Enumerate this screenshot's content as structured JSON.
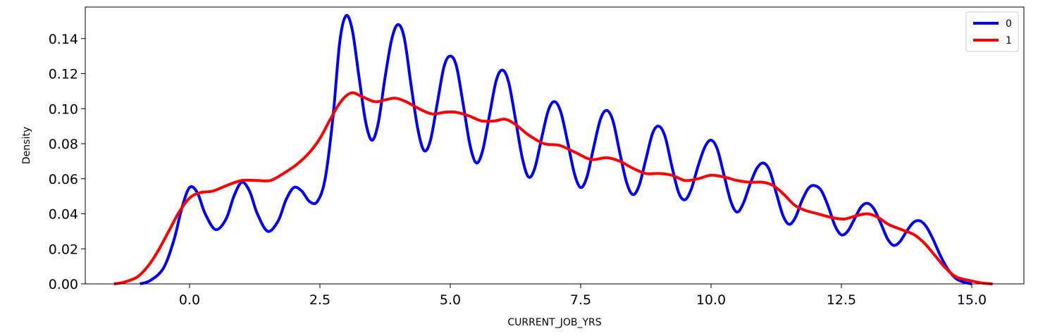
{
  "chart_data": {
    "type": "line",
    "xlabel": "CURRENT_JOB_YRS",
    "ylabel": "Density",
    "xlim": [
      -2.0,
      16.0
    ],
    "ylim": [
      0.0,
      0.158
    ],
    "xticks": [
      0.0,
      2.5,
      5.0,
      7.5,
      10.0,
      12.5,
      15.0
    ],
    "xtick_labels": [
      "0.0",
      "2.5",
      "5.0",
      "7.5",
      "10.0",
      "12.5",
      "15.0"
    ],
    "yticks": [
      0.0,
      0.02,
      0.04,
      0.06,
      0.08,
      0.1,
      0.12,
      0.14
    ],
    "ytick_labels": [
      "0.00",
      "0.02",
      "0.04",
      "0.06",
      "0.08",
      "0.10",
      "0.12",
      "0.14"
    ],
    "grid": false,
    "legend_position": "top-right",
    "series": [
      {
        "name": "0",
        "color": "#0000ff",
        "points": [
          [
            -0.95,
            0.0
          ],
          [
            -0.75,
            0.002
          ],
          [
            -0.5,
            0.009
          ],
          [
            -0.3,
            0.025
          ],
          [
            -0.15,
            0.043
          ],
          [
            0.0,
            0.055
          ],
          [
            0.15,
            0.052
          ],
          [
            0.3,
            0.04
          ],
          [
            0.5,
            0.031
          ],
          [
            0.7,
            0.037
          ],
          [
            0.85,
            0.05
          ],
          [
            1.0,
            0.058
          ],
          [
            1.15,
            0.053
          ],
          [
            1.3,
            0.04
          ],
          [
            1.5,
            0.03
          ],
          [
            1.7,
            0.036
          ],
          [
            1.85,
            0.048
          ],
          [
            2.0,
            0.055
          ],
          [
            2.15,
            0.053
          ],
          [
            2.3,
            0.047
          ],
          [
            2.45,
            0.047
          ],
          [
            2.6,
            0.06
          ],
          [
            2.75,
            0.095
          ],
          [
            2.88,
            0.138
          ],
          [
            3.0,
            0.153
          ],
          [
            3.12,
            0.145
          ],
          [
            3.25,
            0.118
          ],
          [
            3.38,
            0.092
          ],
          [
            3.5,
            0.082
          ],
          [
            3.62,
            0.092
          ],
          [
            3.75,
            0.118
          ],
          [
            3.88,
            0.14
          ],
          [
            4.0,
            0.148
          ],
          [
            4.12,
            0.14
          ],
          [
            4.25,
            0.113
          ],
          [
            4.38,
            0.088
          ],
          [
            4.5,
            0.076
          ],
          [
            4.62,
            0.082
          ],
          [
            4.75,
            0.103
          ],
          [
            4.88,
            0.124
          ],
          [
            5.0,
            0.13
          ],
          [
            5.12,
            0.124
          ],
          [
            5.25,
            0.102
          ],
          [
            5.38,
            0.079
          ],
          [
            5.5,
            0.069
          ],
          [
            5.62,
            0.076
          ],
          [
            5.75,
            0.096
          ],
          [
            5.88,
            0.116
          ],
          [
            6.0,
            0.122
          ],
          [
            6.12,
            0.115
          ],
          [
            6.25,
            0.094
          ],
          [
            6.38,
            0.072
          ],
          [
            6.5,
            0.061
          ],
          [
            6.62,
            0.066
          ],
          [
            6.75,
            0.083
          ],
          [
            6.88,
            0.099
          ],
          [
            7.0,
            0.104
          ],
          [
            7.12,
            0.098
          ],
          [
            7.25,
            0.081
          ],
          [
            7.38,
            0.063
          ],
          [
            7.5,
            0.055
          ],
          [
            7.62,
            0.061
          ],
          [
            7.75,
            0.078
          ],
          [
            7.88,
            0.094
          ],
          [
            8.0,
            0.099
          ],
          [
            8.12,
            0.093
          ],
          [
            8.25,
            0.075
          ],
          [
            8.38,
            0.058
          ],
          [
            8.5,
            0.051
          ],
          [
            8.62,
            0.056
          ],
          [
            8.75,
            0.071
          ],
          [
            8.88,
            0.086
          ],
          [
            9.0,
            0.09
          ],
          [
            9.12,
            0.084
          ],
          [
            9.25,
            0.067
          ],
          [
            9.38,
            0.052
          ],
          [
            9.5,
            0.048
          ],
          [
            9.62,
            0.054
          ],
          [
            9.75,
            0.067
          ],
          [
            9.88,
            0.078
          ],
          [
            10.0,
            0.082
          ],
          [
            10.12,
            0.077
          ],
          [
            10.25,
            0.062
          ],
          [
            10.38,
            0.047
          ],
          [
            10.5,
            0.041
          ],
          [
            10.62,
            0.046
          ],
          [
            10.75,
            0.057
          ],
          [
            10.88,
            0.066
          ],
          [
            11.0,
            0.069
          ],
          [
            11.12,
            0.065
          ],
          [
            11.25,
            0.052
          ],
          [
            11.38,
            0.039
          ],
          [
            11.5,
            0.034
          ],
          [
            11.62,
            0.038
          ],
          [
            11.75,
            0.048
          ],
          [
            11.88,
            0.055
          ],
          [
            12.0,
            0.056
          ],
          [
            12.12,
            0.053
          ],
          [
            12.25,
            0.044
          ],
          [
            12.38,
            0.033
          ],
          [
            12.5,
            0.028
          ],
          [
            12.62,
            0.03
          ],
          [
            12.75,
            0.037
          ],
          [
            12.88,
            0.044
          ],
          [
            13.0,
            0.046
          ],
          [
            13.12,
            0.043
          ],
          [
            13.25,
            0.035
          ],
          [
            13.38,
            0.026
          ],
          [
            13.5,
            0.022
          ],
          [
            13.62,
            0.024
          ],
          [
            13.75,
            0.03
          ],
          [
            13.88,
            0.035
          ],
          [
            14.0,
            0.036
          ],
          [
            14.12,
            0.033
          ],
          [
            14.25,
            0.026
          ],
          [
            14.4,
            0.016
          ],
          [
            14.55,
            0.008
          ],
          [
            14.7,
            0.003
          ],
          [
            14.85,
            0.001
          ],
          [
            15.0,
            0.0
          ]
        ]
      },
      {
        "name": "1",
        "color": "#ff0000",
        "points": [
          [
            -1.45,
            0.0
          ],
          [
            -1.25,
            0.001
          ],
          [
            -1.0,
            0.004
          ],
          [
            -0.8,
            0.01
          ],
          [
            -0.6,
            0.019
          ],
          [
            -0.4,
            0.03
          ],
          [
            -0.2,
            0.041
          ],
          [
            0.0,
            0.049
          ],
          [
            0.2,
            0.052
          ],
          [
            0.45,
            0.053
          ],
          [
            0.7,
            0.056
          ],
          [
            1.0,
            0.059
          ],
          [
            1.3,
            0.059
          ],
          [
            1.55,
            0.059
          ],
          [
            1.8,
            0.063
          ],
          [
            2.05,
            0.068
          ],
          [
            2.3,
            0.075
          ],
          [
            2.5,
            0.083
          ],
          [
            2.7,
            0.094
          ],
          [
            2.9,
            0.104
          ],
          [
            3.1,
            0.109
          ],
          [
            3.3,
            0.107
          ],
          [
            3.55,
            0.104
          ],
          [
            3.75,
            0.105
          ],
          [
            3.95,
            0.106
          ],
          [
            4.15,
            0.104
          ],
          [
            4.4,
            0.1
          ],
          [
            4.65,
            0.097
          ],
          [
            4.9,
            0.098
          ],
          [
            5.1,
            0.098
          ],
          [
            5.35,
            0.096
          ],
          [
            5.6,
            0.093
          ],
          [
            5.85,
            0.093
          ],
          [
            6.05,
            0.094
          ],
          [
            6.25,
            0.091
          ],
          [
            6.5,
            0.085
          ],
          [
            6.8,
            0.08
          ],
          [
            7.1,
            0.079
          ],
          [
            7.4,
            0.075
          ],
          [
            7.7,
            0.071
          ],
          [
            8.0,
            0.072
          ],
          [
            8.25,
            0.07
          ],
          [
            8.5,
            0.066
          ],
          [
            8.75,
            0.063
          ],
          [
            9.0,
            0.063
          ],
          [
            9.25,
            0.062
          ],
          [
            9.5,
            0.059
          ],
          [
            9.75,
            0.06
          ],
          [
            10.0,
            0.062
          ],
          [
            10.25,
            0.061
          ],
          [
            10.5,
            0.059
          ],
          [
            10.75,
            0.058
          ],
          [
            11.0,
            0.058
          ],
          [
            11.2,
            0.056
          ],
          [
            11.4,
            0.051
          ],
          [
            11.6,
            0.045
          ],
          [
            11.8,
            0.042
          ],
          [
            12.05,
            0.04
          ],
          [
            12.3,
            0.038
          ],
          [
            12.55,
            0.037
          ],
          [
            12.8,
            0.039
          ],
          [
            13.0,
            0.04
          ],
          [
            13.2,
            0.038
          ],
          [
            13.4,
            0.034
          ],
          [
            13.65,
            0.031
          ],
          [
            13.9,
            0.028
          ],
          [
            14.1,
            0.023
          ],
          [
            14.3,
            0.016
          ],
          [
            14.5,
            0.009
          ],
          [
            14.7,
            0.004
          ],
          [
            14.95,
            0.002
          ],
          [
            15.2,
            0.0005
          ],
          [
            15.4,
            0.0
          ]
        ]
      }
    ]
  }
}
